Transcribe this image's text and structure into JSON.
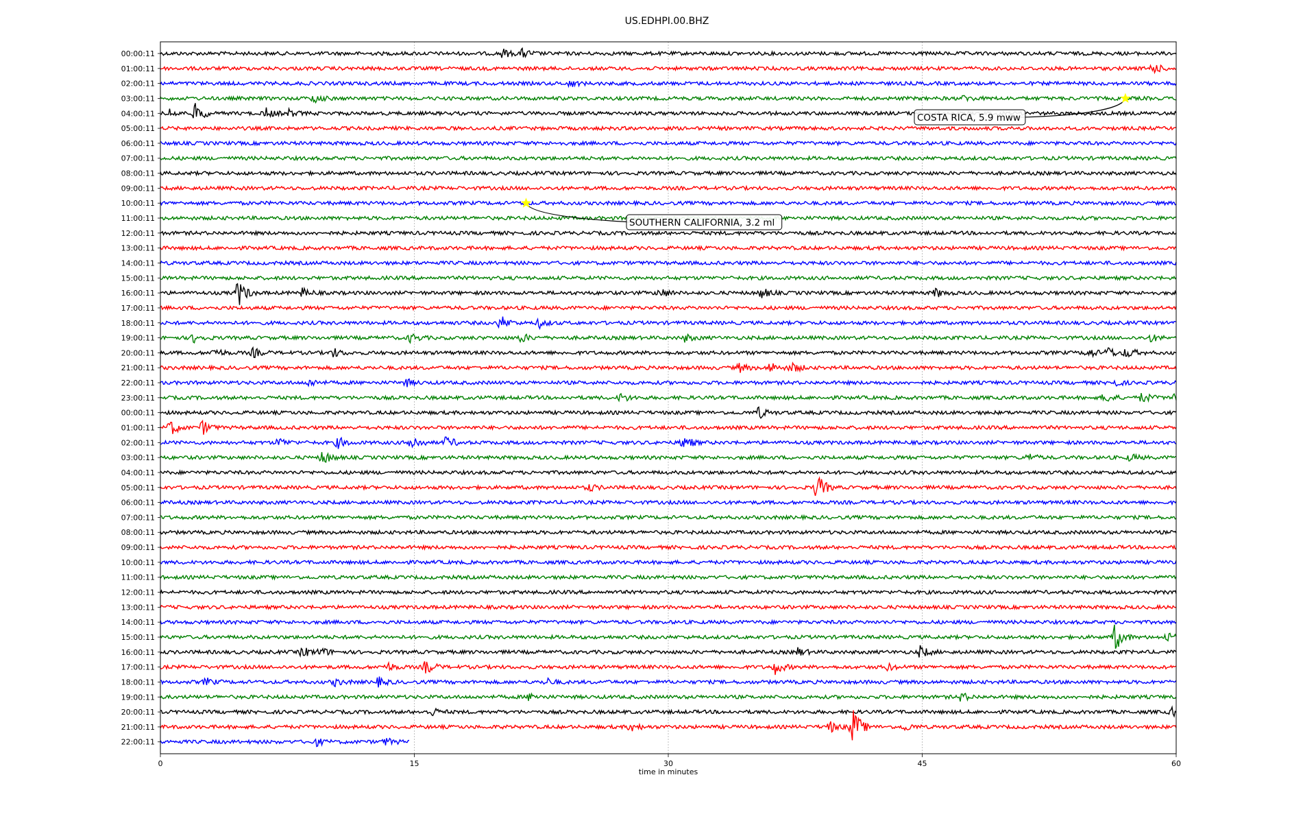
{
  "chart_data": {
    "type": "line",
    "title": "US.EDHPI.00.BHZ",
    "xlabel": "time in minutes",
    "xlim": [
      0,
      60
    ],
    "xticks": [
      0,
      15,
      30,
      45,
      60
    ],
    "grid": "vertical dashed at 15, 30, 45",
    "color_cycle": [
      "#000000",
      "#ff0000",
      "#0000ff",
      "#008000"
    ],
    "rows": [
      {
        "label": "00:00:11"
      },
      {
        "label": "01:00:11"
      },
      {
        "label": "02:00:11"
      },
      {
        "label": "03:00:11"
      },
      {
        "label": "04:00:11"
      },
      {
        "label": "05:00:11"
      },
      {
        "label": "06:00:11"
      },
      {
        "label": "07:00:11"
      },
      {
        "label": "08:00:11"
      },
      {
        "label": "09:00:11"
      },
      {
        "label": "10:00:11"
      },
      {
        "label": "11:00:11"
      },
      {
        "label": "12:00:11"
      },
      {
        "label": "13:00:11"
      },
      {
        "label": "14:00:11"
      },
      {
        "label": "15:00:11"
      },
      {
        "label": "16:00:11"
      },
      {
        "label": "17:00:11"
      },
      {
        "label": "18:00:11"
      },
      {
        "label": "19:00:11"
      },
      {
        "label": "20:00:11"
      },
      {
        "label": "21:00:11"
      },
      {
        "label": "22:00:11"
      },
      {
        "label": "23:00:11"
      },
      {
        "label": "00:00:11"
      },
      {
        "label": "01:00:11"
      },
      {
        "label": "02:00:11"
      },
      {
        "label": "03:00:11"
      },
      {
        "label": "04:00:11"
      },
      {
        "label": "05:00:11"
      },
      {
        "label": "06:00:11"
      },
      {
        "label": "07:00:11"
      },
      {
        "label": "08:00:11"
      },
      {
        "label": "09:00:11"
      },
      {
        "label": "10:00:11"
      },
      {
        "label": "11:00:11"
      },
      {
        "label": "12:00:11"
      },
      {
        "label": "13:00:11"
      },
      {
        "label": "14:00:11"
      },
      {
        "label": "15:00:11"
      },
      {
        "label": "16:00:11"
      },
      {
        "label": "17:00:11"
      },
      {
        "label": "18:00:11"
      },
      {
        "label": "19:00:11"
      },
      {
        "label": "20:00:11"
      },
      {
        "label": "21:00:11"
      },
      {
        "label": "22:00:11",
        "end_minute": 14.7
      }
    ],
    "bursts": [
      {
        "row": 0,
        "t": 20.2,
        "amp": 0.5
      },
      {
        "row": 0,
        "t": 21.4,
        "amp": 0.5
      },
      {
        "row": 1,
        "t": 58.6,
        "amp": 0.6
      },
      {
        "row": 2,
        "t": 24.2,
        "amp": 0.35
      },
      {
        "row": 3,
        "t": 9.1,
        "amp": 0.5
      },
      {
        "row": 3,
        "t": 47.5,
        "amp": 0.3
      },
      {
        "row": 4,
        "t": 0.5,
        "amp": 0.5
      },
      {
        "row": 4,
        "t": 2.1,
        "amp": 1.2
      },
      {
        "row": 4,
        "t": 6.2,
        "amp": 0.6
      },
      {
        "row": 4,
        "t": 7.6,
        "amp": 0.4
      },
      {
        "row": 16,
        "t": 4.6,
        "amp": 1.6
      },
      {
        "row": 16,
        "t": 8.4,
        "amp": 0.5
      },
      {
        "row": 16,
        "t": 29.5,
        "amp": 0.6
      },
      {
        "row": 16,
        "t": 35.5,
        "amp": 0.6
      },
      {
        "row": 16,
        "t": 45.8,
        "amp": 0.5
      },
      {
        "row": 18,
        "t": 20.1,
        "amp": 0.8
      },
      {
        "row": 18,
        "t": 22.4,
        "amp": 0.5
      },
      {
        "row": 19,
        "t": 2.0,
        "amp": 0.5
      },
      {
        "row": 19,
        "t": 14.8,
        "amp": 0.5
      },
      {
        "row": 19,
        "t": 21.3,
        "amp": 0.5
      },
      {
        "row": 19,
        "t": 31.0,
        "amp": 0.4
      },
      {
        "row": 19,
        "t": 58.5,
        "amp": 0.4
      },
      {
        "row": 20,
        "t": 3.2,
        "amp": 0.5
      },
      {
        "row": 20,
        "t": 5.5,
        "amp": 0.5
      },
      {
        "row": 20,
        "t": 10.2,
        "amp": 0.5
      },
      {
        "row": 20,
        "t": 54.8,
        "amp": 0.6
      },
      {
        "row": 20,
        "t": 56.0,
        "amp": 0.6
      },
      {
        "row": 20,
        "t": 57.1,
        "amp": 0.6
      },
      {
        "row": 21,
        "t": 34.2,
        "amp": 0.5
      },
      {
        "row": 21,
        "t": 36.0,
        "amp": 0.6
      },
      {
        "row": 21,
        "t": 37.3,
        "amp": 0.6
      },
      {
        "row": 22,
        "t": 8.8,
        "amp": 0.4
      },
      {
        "row": 22,
        "t": 14.5,
        "amp": 0.4
      },
      {
        "row": 22,
        "t": 56.2,
        "amp": 0.5
      },
      {
        "row": 23,
        "t": 27.2,
        "amp": 0.5
      },
      {
        "row": 23,
        "t": 55.8,
        "amp": 0.6
      },
      {
        "row": 23,
        "t": 58.0,
        "amp": 0.6
      },
      {
        "row": 23,
        "t": 59.8,
        "amp": 0.5
      },
      {
        "row": 24,
        "t": 35.3,
        "amp": 0.7
      },
      {
        "row": 25,
        "t": 0.6,
        "amp": 0.9
      },
      {
        "row": 25,
        "t": 2.5,
        "amp": 0.8
      },
      {
        "row": 26,
        "t": 7.0,
        "amp": 0.5
      },
      {
        "row": 26,
        "t": 10.5,
        "amp": 0.6
      },
      {
        "row": 26,
        "t": 14.8,
        "amp": 1.0
      },
      {
        "row": 26,
        "t": 16.9,
        "amp": 0.7
      },
      {
        "row": 26,
        "t": 30.9,
        "amp": 0.9
      },
      {
        "row": 27,
        "t": 9.6,
        "amp": 0.8
      },
      {
        "row": 27,
        "t": 51.3,
        "amp": 0.4
      },
      {
        "row": 27,
        "t": 57.3,
        "amp": 0.4
      },
      {
        "row": 29,
        "t": 38.8,
        "amp": 1.6
      },
      {
        "row": 29,
        "t": 25.3,
        "amp": 0.4
      },
      {
        "row": 39,
        "t": 56.4,
        "amp": 1.6
      },
      {
        "row": 39,
        "t": 59.5,
        "amp": 0.5
      },
      {
        "row": 40,
        "t": 8.4,
        "amp": 0.6
      },
      {
        "row": 40,
        "t": 9.5,
        "amp": 0.5
      },
      {
        "row": 40,
        "t": 37.6,
        "amp": 0.5
      },
      {
        "row": 40,
        "t": 44.9,
        "amp": 0.7
      },
      {
        "row": 41,
        "t": 13.4,
        "amp": 0.5
      },
      {
        "row": 41,
        "t": 15.7,
        "amp": 0.8
      },
      {
        "row": 41,
        "t": 36.3,
        "amp": 0.8
      },
      {
        "row": 41,
        "t": 42.9,
        "amp": 0.4
      },
      {
        "row": 42,
        "t": 2.7,
        "amp": 0.4
      },
      {
        "row": 42,
        "t": 10.3,
        "amp": 0.4
      },
      {
        "row": 42,
        "t": 12.9,
        "amp": 0.5
      },
      {
        "row": 42,
        "t": 22.8,
        "amp": 0.4
      },
      {
        "row": 43,
        "t": 21.8,
        "amp": 0.4
      },
      {
        "row": 43,
        "t": 47.3,
        "amp": 0.5
      },
      {
        "row": 44,
        "t": 16.0,
        "amp": 0.5
      },
      {
        "row": 44,
        "t": 59.8,
        "amp": 0.6
      },
      {
        "row": 45,
        "t": 27.8,
        "amp": 0.5
      },
      {
        "row": 45,
        "t": 39.5,
        "amp": 0.7
      },
      {
        "row": 45,
        "t": 40.9,
        "amp": 2.3
      },
      {
        "row": 45,
        "t": 44.0,
        "amp": 0.4
      },
      {
        "row": 46,
        "t": 9.2,
        "amp": 0.4
      },
      {
        "row": 46,
        "t": 13.3,
        "amp": 0.4
      }
    ],
    "annotations": [
      {
        "text": "COSTA RICA, 5.9 mww",
        "row": 3,
        "t": 57.0,
        "marker": "star",
        "marker_color": "#ffff00"
      },
      {
        "text": "SOUTHERN CALIFORNIA, 3.2 ml",
        "row": 10,
        "t": 21.6,
        "marker": "star",
        "marker_color": "#ffff00"
      }
    ]
  }
}
